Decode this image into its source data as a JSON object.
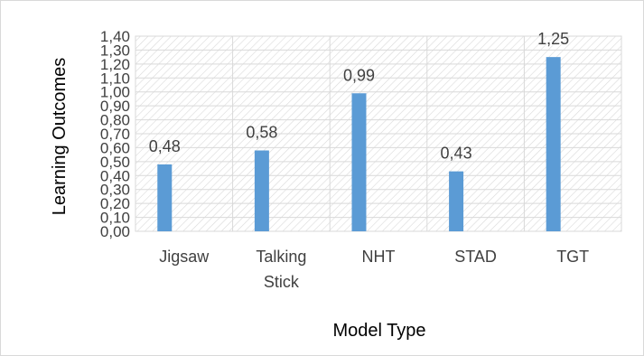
{
  "chart_data": {
    "type": "bar",
    "categories": [
      "Jigsaw",
      "Talking Stick",
      "NHT",
      "STAD",
      "TGT"
    ],
    "values": [
      0.48,
      0.58,
      0.99,
      0.43,
      1.25
    ],
    "data_labels": [
      "0,48",
      "0,58",
      "0,99",
      "0,43",
      "1,25"
    ],
    "xlabel": "Model Type",
    "ylabel": "Learning Outcomes",
    "ylim": [
      0,
      1.4
    ],
    "y_ticks": [
      "0,00",
      "0,10",
      "0,20",
      "0,30",
      "0,40",
      "0,50",
      "0,60",
      "0,70",
      "0,80",
      "0,90",
      "1,00",
      "1,10",
      "1,20",
      "1,30",
      "1,40"
    ],
    "grid": true,
    "legend": "none",
    "colors": {
      "bar": "#5b9bd5",
      "grid": "#d9d9d9",
      "hatch": "#d9d9d9",
      "text": "#404040"
    }
  }
}
